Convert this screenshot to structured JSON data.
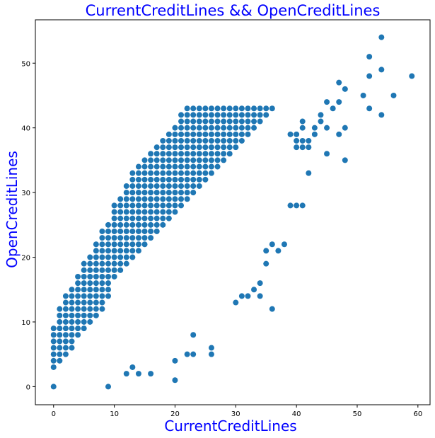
{
  "chart_data": {
    "type": "scatter",
    "title": "CurrentCreditLines && OpenCreditLines",
    "xlabel": "CurrentCreditLines",
    "ylabel": "OpenCreditLines",
    "xlim": [
      -3,
      62
    ],
    "ylim": [
      -2.8,
      56.7
    ],
    "xticks": [
      "0",
      "10",
      "20",
      "30",
      "40",
      "50",
      "60"
    ],
    "yticks": [
      "0",
      "10",
      "20",
      "30",
      "40",
      "50"
    ],
    "colors": {
      "title": "#0000ff",
      "axis_label": "#0000ff",
      "point": "#1f77b4"
    },
    "grid": false,
    "series_rules": "dense integer lattice points described as row runs plus sparse outliers",
    "rows": [
      [
        0,
        0,
        0
      ],
      [
        0,
        1,
        1
      ],
      [
        0,
        1,
        2
      ],
      [
        0,
        0,
        3
      ],
      [
        1,
        0,
        4
      ],
      [
        1,
        1,
        4
      ],
      [
        2,
        0,
        5
      ],
      [
        2,
        2,
        5
      ],
      [
        3,
        0,
        6
      ],
      [
        3,
        0,
        7
      ],
      [
        4,
        0,
        8
      ],
      [
        5,
        0,
        9
      ],
      [
        6,
        1,
        10
      ],
      [
        7,
        1,
        11
      ],
      [
        8,
        1,
        12
      ],
      [
        8,
        2,
        13
      ],
      [
        9,
        2,
        14
      ],
      [
        9,
        3,
        15
      ],
      [
        9,
        4,
        16
      ],
      [
        10,
        4,
        17
      ],
      [
        11,
        5,
        18
      ],
      [
        12,
        5,
        19
      ],
      [
        13,
        6,
        20
      ],
      [
        14,
        7,
        21
      ],
      [
        15,
        7,
        22
      ],
      [
        16,
        8,
        23
      ],
      [
        17,
        8,
        24
      ],
      [
        18,
        9,
        25
      ],
      [
        19,
        10,
        26
      ],
      [
        20,
        10,
        27
      ],
      [
        21,
        10,
        28
      ],
      [
        22,
        11,
        29
      ],
      [
        23,
        12,
        30
      ],
      [
        24,
        12,
        31
      ],
      [
        25,
        13,
        32
      ],
      [
        26,
        13,
        33
      ],
      [
        27,
        14,
        34
      ],
      [
        28,
        15,
        35
      ],
      [
        29,
        16,
        36
      ],
      [
        30,
        17,
        37
      ],
      [
        31,
        18,
        38
      ],
      [
        32,
        19,
        39
      ],
      [
        33,
        20,
        40
      ],
      [
        34,
        21,
        41
      ],
      [
        35,
        21,
        42
      ],
      [
        36,
        22,
        43
      ]
    ],
    "extra_points": [
      [
        2,
        11
      ],
      [
        9,
        0
      ],
      [
        13,
        3
      ],
      [
        12,
        2
      ],
      [
        14,
        2
      ],
      [
        16,
        2
      ],
      [
        16,
        23
      ],
      [
        20,
        1
      ],
      [
        20,
        4
      ],
      [
        22,
        5
      ],
      [
        23,
        5
      ],
      [
        23,
        8
      ],
      [
        26,
        5
      ],
      [
        26,
        6
      ],
      [
        30,
        13
      ],
      [
        31,
        14
      ],
      [
        32,
        14
      ],
      [
        33,
        15
      ],
      [
        34,
        14
      ],
      [
        34,
        16
      ],
      [
        35,
        19
      ],
      [
        35,
        21
      ],
      [
        36,
        12
      ],
      [
        36,
        22
      ],
      [
        37,
        21
      ],
      [
        38,
        22
      ],
      [
        39,
        28
      ],
      [
        40,
        28
      ],
      [
        41,
        28
      ],
      [
        42,
        33
      ],
      [
        44,
        41
      ],
      [
        45,
        36
      ],
      [
        45,
        44
      ],
      [
        46,
        43
      ],
      [
        47,
        39
      ],
      [
        47,
        44
      ],
      [
        47,
        47
      ],
      [
        48,
        35
      ],
      [
        48,
        40
      ],
      [
        48,
        46
      ],
      [
        51,
        45
      ],
      [
        52,
        43
      ],
      [
        52,
        48
      ],
      [
        52,
        51
      ],
      [
        54,
        42
      ],
      [
        54,
        49
      ],
      [
        54,
        54
      ],
      [
        56,
        45
      ],
      [
        59,
        48
      ],
      [
        40,
        37
      ],
      [
        40,
        38
      ],
      [
        41,
        37
      ],
      [
        41,
        38
      ],
      [
        42,
        37
      ],
      [
        42,
        38
      ],
      [
        43,
        39
      ],
      [
        43,
        40
      ],
      [
        44,
        42
      ],
      [
        45,
        40
      ],
      [
        39,
        39
      ],
      [
        40,
        39
      ],
      [
        41,
        40
      ],
      [
        41,
        41
      ],
      [
        40,
        38
      ]
    ]
  }
}
